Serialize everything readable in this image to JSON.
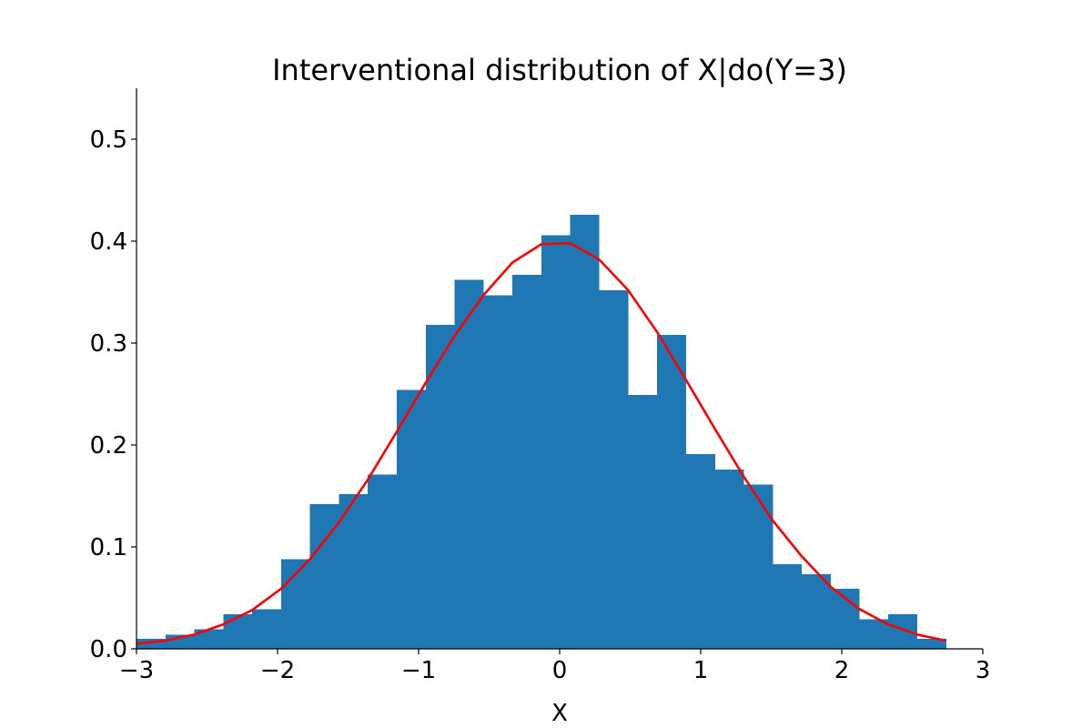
{
  "chart_data": {
    "type": "bar",
    "title": "Interventional distribution of X|do(Y=3)",
    "xlabel": "X",
    "ylabel": "",
    "xlim": [
      -3,
      3
    ],
    "ylim": [
      0,
      0.55
    ],
    "grid": false,
    "x_ticks": [
      -3,
      -2,
      -1,
      0,
      1,
      2,
      3
    ],
    "x_tick_labels": [
      "−3",
      "−2",
      "−1",
      "0",
      "1",
      "2",
      "3"
    ],
    "y_ticks": [
      0.0,
      0.1,
      0.2,
      0.3,
      0.4,
      0.5
    ],
    "y_tick_labels": [
      "0.0",
      "0.1",
      "0.2",
      "0.3",
      "0.4",
      "0.5"
    ],
    "histogram": {
      "color": "#1f77b4",
      "bin_edges": [
        -3.0,
        -2.795,
        -2.59,
        -2.385,
        -2.18,
        -1.975,
        -1.77,
        -1.565,
        -1.36,
        -1.155,
        -0.95,
        -0.745,
        -0.54,
        -0.335,
        -0.13,
        0.075,
        0.28,
        0.485,
        0.69,
        0.895,
        1.1,
        1.305,
        1.51,
        1.715,
        1.92,
        2.125,
        2.33,
        2.535,
        2.74
      ],
      "densities": [
        0.01,
        0.014,
        0.019,
        0.034,
        0.039,
        0.088,
        0.142,
        0.152,
        0.171,
        0.254,
        0.318,
        0.362,
        0.347,
        0.367,
        0.406,
        0.426,
        0.352,
        0.249,
        0.308,
        0.191,
        0.176,
        0.161,
        0.083,
        0.073,
        0.059,
        0.029,
        0.034,
        0.01
      ]
    },
    "series": [
      {
        "type": "line",
        "color": "#ff0000",
        "x": [
          -3.0,
          -2.795,
          -2.59,
          -2.385,
          -2.18,
          -1.975,
          -1.77,
          -1.565,
          -1.36,
          -1.155,
          -0.95,
          -0.745,
          -0.54,
          -0.335,
          -0.13,
          0.075,
          0.28,
          0.485,
          0.69,
          0.895,
          1.1,
          1.305,
          1.51,
          1.715,
          1.92,
          2.125,
          2.33,
          2.535,
          2.74
        ],
        "y": [
          0.005,
          0.008,
          0.014,
          0.024,
          0.038,
          0.059,
          0.088,
          0.124,
          0.166,
          0.213,
          0.261,
          0.307,
          0.347,
          0.379,
          0.397,
          0.398,
          0.382,
          0.352,
          0.311,
          0.264,
          0.216,
          0.169,
          0.126,
          0.091,
          0.061,
          0.039,
          0.024,
          0.014,
          0.008
        ]
      }
    ]
  }
}
